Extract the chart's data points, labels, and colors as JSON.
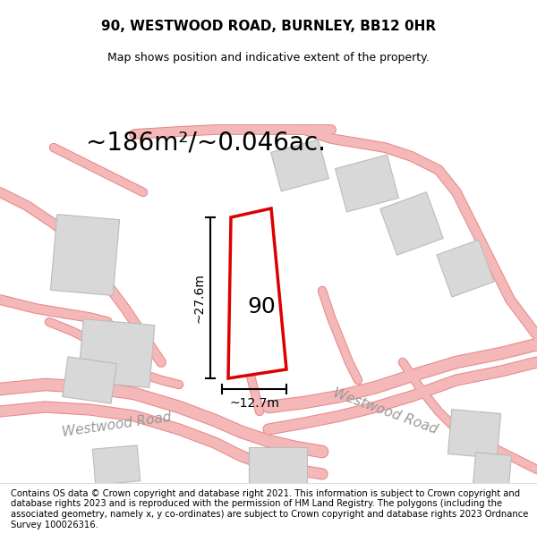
{
  "title": "90, WESTWOOD ROAD, BURNLEY, BB12 0HR",
  "subtitle": "Map shows position and indicative extent of the property.",
  "area_label": "~186m²/~0.046ac.",
  "property_number": "90",
  "dim_height": "~27.6m",
  "dim_width": "~12.7m",
  "footer": "Contains OS data © Crown copyright and database right 2021. This information is subject to Crown copyright and database rights 2023 and is reproduced with the permission of HM Land Registry. The polygons (including the associated geometry, namely x, y co-ordinates) are subject to Crown copyright and database rights 2023 Ordnance Survey 100026316.",
  "bg_color": "#f5f5f5",
  "map_bg": "#f8f8f8",
  "road_color": "#f4b8b8",
  "road_stroke": "#e88888",
  "building_fill": "#d8d8d8",
  "building_stroke": "#bbbbbb",
  "plot_stroke": "#dd0000",
  "plot_fill": "#ffffff",
  "dim_color": "#000000",
  "road_label_color": "#999999",
  "title_fontsize": 11,
  "subtitle_fontsize": 9,
  "area_fontsize": 20,
  "property_fontsize": 18,
  "dim_fontsize": 10,
  "road_label_fontsize": 11,
  "footer_fontsize": 7.2
}
